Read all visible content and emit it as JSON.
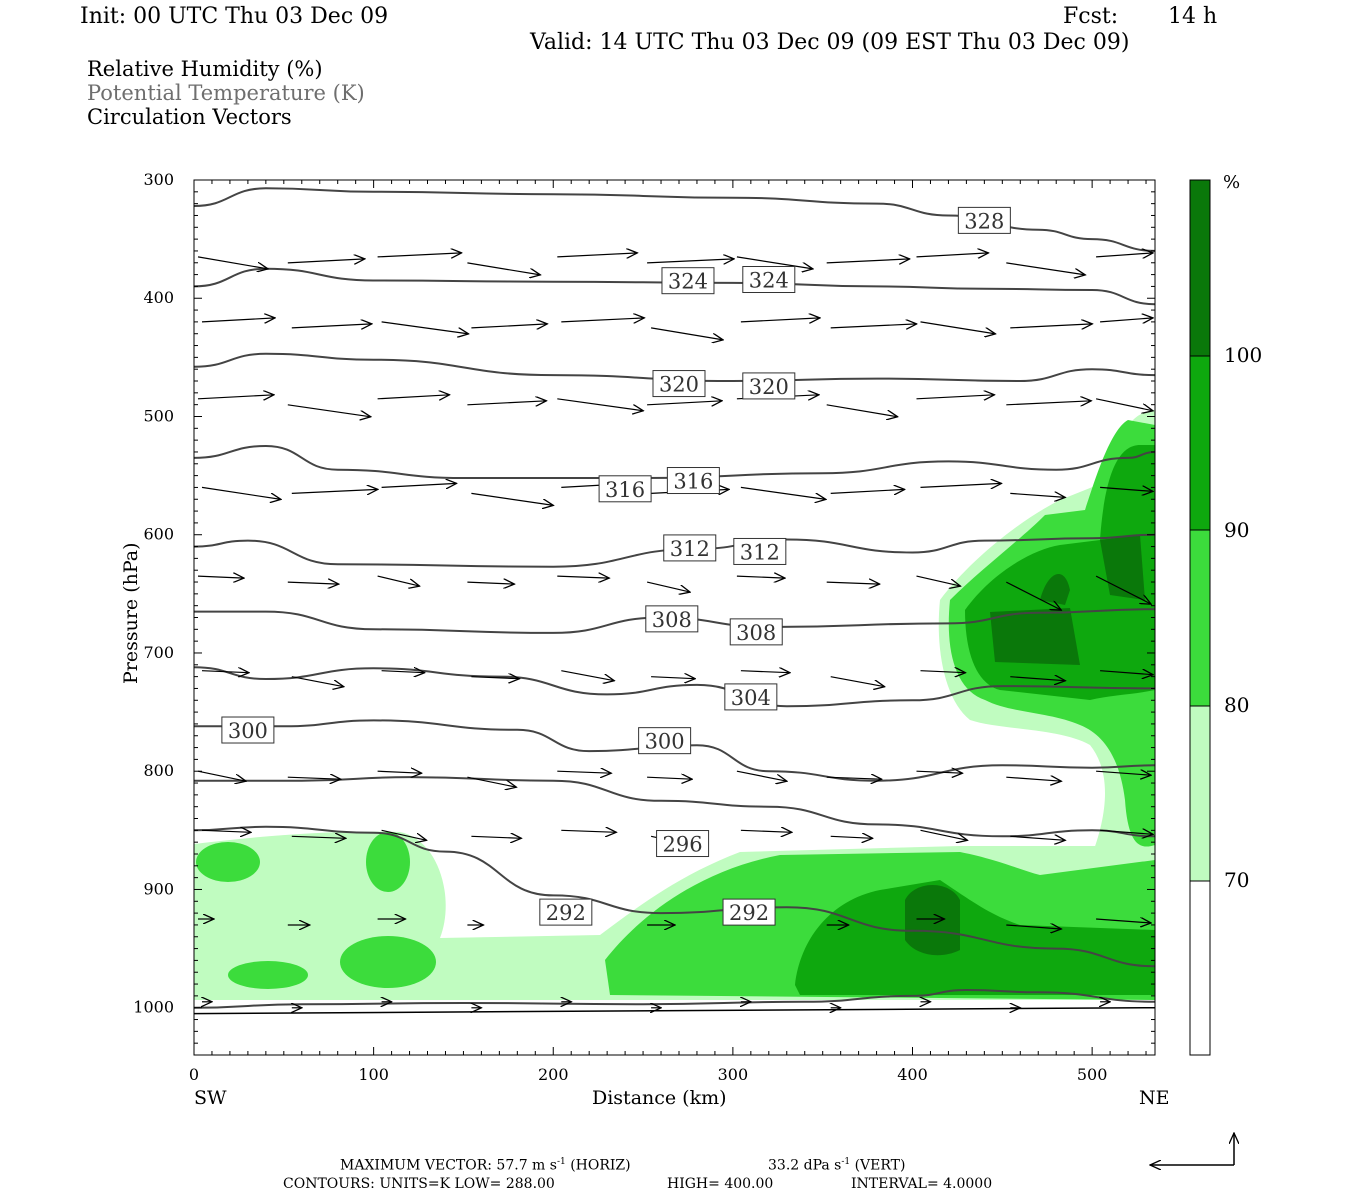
{
  "header": {
    "init": "Init: 00 UTC Thu 03 Dec 09",
    "fcst_label": "Fcst:",
    "fcst_value": "14 h",
    "valid": "Valid: 14 UTC Thu 03 Dec 09 (09 EST Thu 03 Dec 09)"
  },
  "legend": {
    "line1": "Relative Humidity (%)",
    "line2": "Potential Temperature (K)",
    "line3": "Circulation Vectors"
  },
  "footer": {
    "max_vector": "MAXIMUM VECTOR:  57.7 m s",
    "max_vector_exp": "-1",
    "max_vector_tail": " (HORIZ)",
    "vert": "33.2 dPa s",
    "vert_exp": "-1",
    "vert_tail": " (VERT)",
    "contours": "CONTOURS:  UNITS=K  LOW=  288.00",
    "high": "HIGH=  400.00",
    "interval": "INTERVAL=    4.0000"
  },
  "chart_data": {
    "type": "contour",
    "xlabel": "Distance (km)",
    "ylabel": "Pressure (hPa)",
    "x_left_label": "SW",
    "x_right_label": "NE",
    "xlim": [
      0,
      535
    ],
    "ylim": [
      300,
      1040
    ],
    "y_log": false,
    "x_ticks": [
      0,
      100,
      200,
      300,
      400,
      500
    ],
    "y_ticks": [
      300,
      400,
      500,
      600,
      700,
      800,
      900,
      1000
    ],
    "colorbar": {
      "unit": "%",
      "levels": [
        70,
        80,
        90,
        100
      ],
      "colors": [
        "#ffffff",
        "#c0fcc0",
        "#3cdc3c",
        "#0ea80e",
        "#0a780a"
      ]
    },
    "theta_contours": [
      {
        "value": 328,
        "points": [
          [
            0,
            322
          ],
          [
            40,
            307
          ],
          [
            100,
            310
          ],
          [
            200,
            312
          ],
          [
            300,
            315
          ],
          [
            380,
            320
          ],
          [
            420,
            330
          ],
          [
            470,
            342
          ],
          [
            500,
            350
          ],
          [
            535,
            360
          ]
        ]
      },
      {
        "value": 324,
        "points": [
          [
            0,
            390
          ],
          [
            40,
            375
          ],
          [
            100,
            385
          ],
          [
            200,
            386
          ],
          [
            300,
            387
          ],
          [
            380,
            390
          ],
          [
            440,
            392
          ],
          [
            500,
            393
          ],
          [
            535,
            405
          ]
        ]
      },
      {
        "value": 320,
        "points": [
          [
            0,
            458
          ],
          [
            40,
            447
          ],
          [
            100,
            452
          ],
          [
            200,
            465
          ],
          [
            300,
            470
          ],
          [
            380,
            468
          ],
          [
            460,
            470
          ],
          [
            500,
            460
          ],
          [
            535,
            465
          ]
        ]
      },
      {
        "value": 316,
        "points": [
          [
            0,
            535
          ],
          [
            40,
            525
          ],
          [
            80,
            545
          ],
          [
            150,
            552
          ],
          [
            250,
            552
          ],
          [
            350,
            548
          ],
          [
            420,
            538
          ],
          [
            480,
            545
          ],
          [
            520,
            535
          ],
          [
            535,
            530
          ]
        ]
      },
      {
        "value": 312,
        "points": [
          [
            0,
            610
          ],
          [
            30,
            605
          ],
          [
            80,
            625
          ],
          [
            200,
            627
          ],
          [
            280,
            612
          ],
          [
            330,
            604
          ],
          [
            400,
            615
          ],
          [
            440,
            605
          ],
          [
            500,
            603
          ],
          [
            535,
            600
          ]
        ]
      },
      {
        "value": 308,
        "points": [
          [
            0,
            665
          ],
          [
            40,
            665
          ],
          [
            100,
            680
          ],
          [
            200,
            683
          ],
          [
            260,
            670
          ],
          [
            320,
            678
          ],
          [
            420,
            675
          ],
          [
            470,
            666
          ],
          [
            535,
            663
          ]
        ]
      },
      {
        "value": 304,
        "points": [
          [
            0,
            712
          ],
          [
            40,
            722
          ],
          [
            100,
            713
          ],
          [
            170,
            720
          ],
          [
            230,
            735
          ],
          [
            280,
            727
          ],
          [
            330,
            745
          ],
          [
            400,
            740
          ],
          [
            450,
            728
          ],
          [
            535,
            730
          ]
        ]
      },
      {
        "value": 300,
        "points": [
          [
            0,
            762
          ],
          [
            50,
            762
          ],
          [
            100,
            757
          ],
          [
            180,
            765
          ],
          [
            220,
            783
          ],
          [
            280,
            778
          ],
          [
            320,
            800
          ],
          [
            380,
            808
          ],
          [
            450,
            795
          ],
          [
            500,
            797
          ],
          [
            535,
            795
          ]
        ]
      },
      {
        "value": 300,
        "points": [
          [
            0,
            808
          ],
          [
            60,
            808
          ],
          [
            120,
            805
          ],
          [
            200,
            808
          ],
          [
            260,
            825
          ],
          [
            320,
            830
          ],
          [
            380,
            845
          ],
          [
            450,
            855
          ],
          [
            500,
            850
          ],
          [
            535,
            855
          ]
        ]
      },
      {
        "value": 296,
        "points": [
          [
            0,
            850
          ],
          [
            40,
            847
          ],
          [
            100,
            852
          ],
          [
            140,
            868
          ],
          [
            200,
            905
          ],
          [
            260,
            920
          ],
          [
            330,
            915
          ],
          [
            400,
            935
          ],
          [
            480,
            950
          ],
          [
            535,
            965
          ]
        ]
      },
      {
        "value": 292,
        "points": [
          [
            0,
            1000
          ],
          [
            60,
            997
          ],
          [
            150,
            996
          ],
          [
            250,
            997
          ],
          [
            340,
            995
          ],
          [
            400,
            990
          ],
          [
            430,
            985
          ],
          [
            470,
            987
          ],
          [
            535,
            995
          ]
        ]
      }
    ],
    "contour_labels": [
      {
        "text": "328",
        "x": 440,
        "y": 335
      },
      {
        "text": "324",
        "x": 275,
        "y": 386
      },
      {
        "text": "324",
        "x": 320,
        "y": 385
      },
      {
        "text": "320",
        "x": 270,
        "y": 473
      },
      {
        "text": "320",
        "x": 320,
        "y": 475
      },
      {
        "text": "316",
        "x": 240,
        "y": 562
      },
      {
        "text": "316",
        "x": 278,
        "y": 555
      },
      {
        "text": "312",
        "x": 276,
        "y": 612
      },
      {
        "text": "312",
        "x": 315,
        "y": 615
      },
      {
        "text": "308",
        "x": 266,
        "y": 672
      },
      {
        "text": "308",
        "x": 313,
        "y": 683
      },
      {
        "text": "304",
        "x": 310,
        "y": 738
      },
      {
        "text": "300",
        "x": 30,
        "y": 766
      },
      {
        "text": "300",
        "x": 262,
        "y": 775
      },
      {
        "text": "296",
        "x": 272,
        "y": 862
      },
      {
        "text": "292",
        "x": 207,
        "y": 920
      },
      {
        "text": "292",
        "x": 309,
        "y": 920
      }
    ]
  }
}
